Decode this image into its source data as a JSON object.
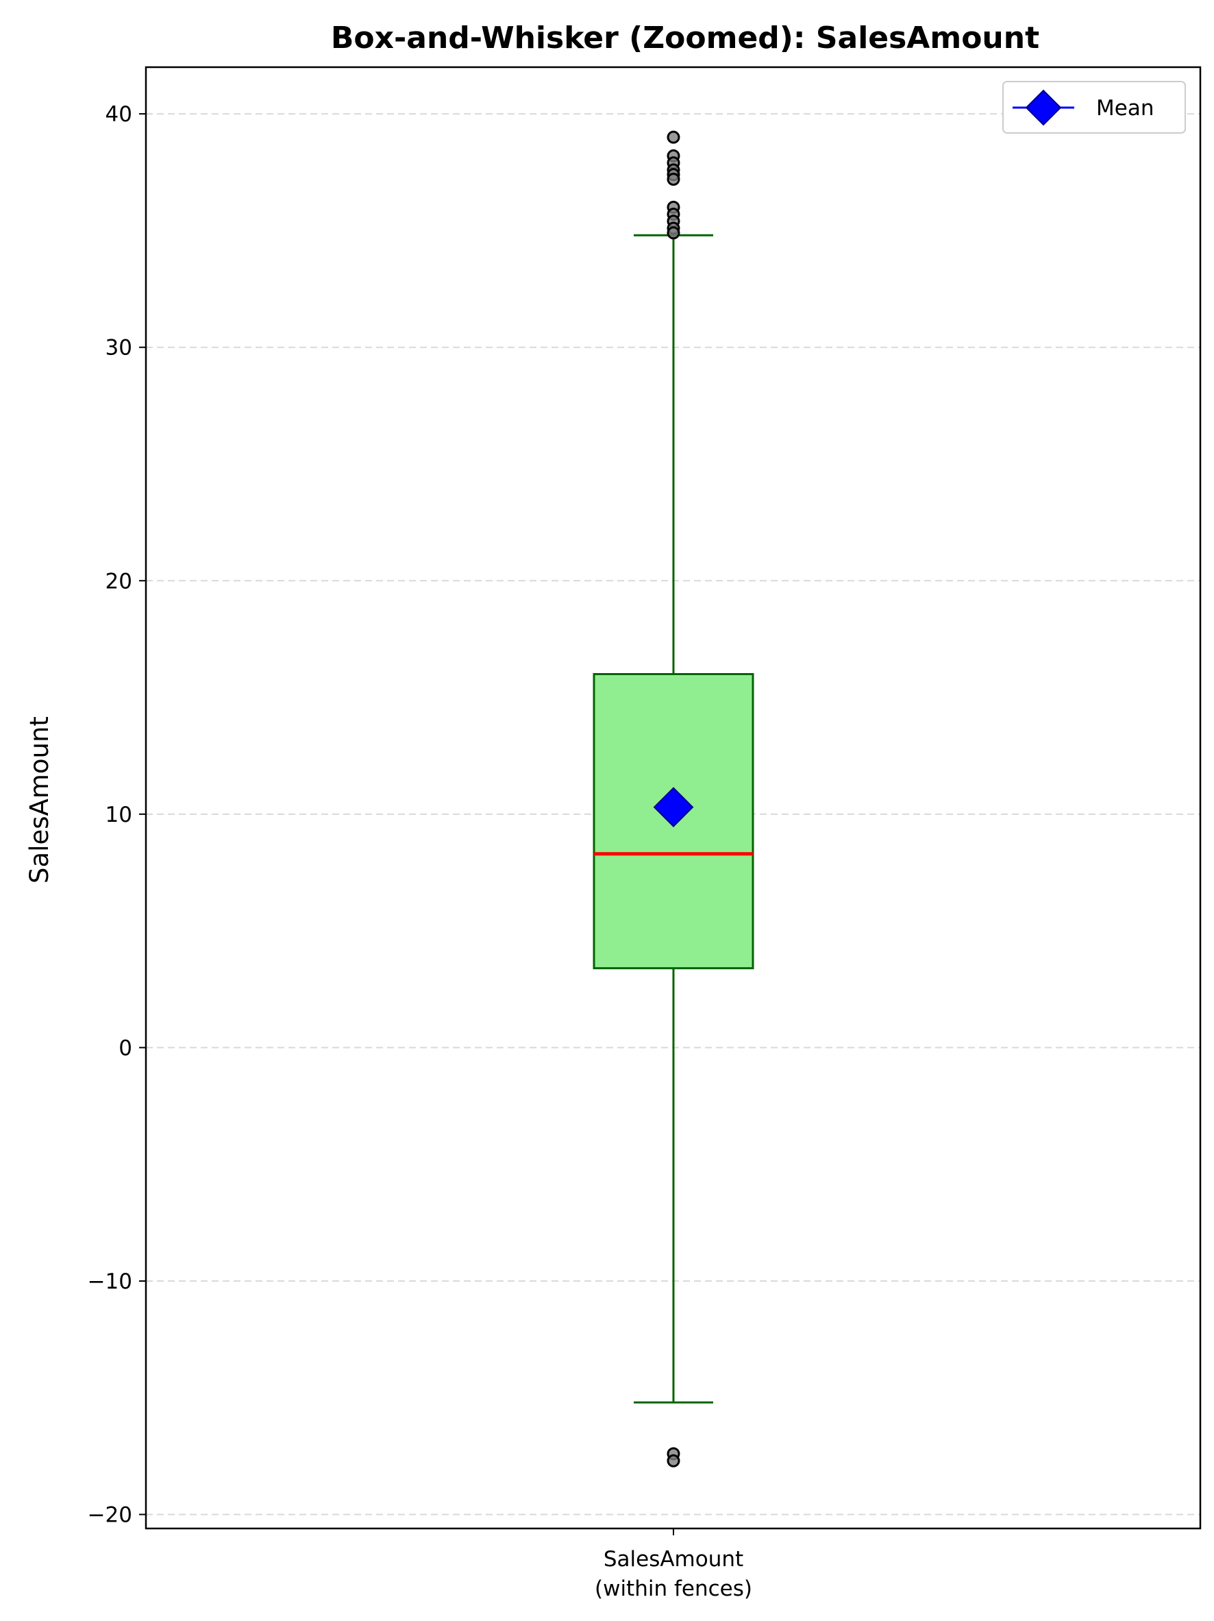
{
  "chart_data": {
    "type": "box",
    "title": "Box-and-Whisker (Zoomed): SalesAmount",
    "ylabel": "SalesAmount",
    "categories": [
      "SalesAmount",
      "(within fences)"
    ],
    "ylim": [
      -20.6,
      42.0
    ],
    "yticks": [
      -20,
      -10,
      0,
      10,
      20,
      30,
      40
    ],
    "ytick_labels": [
      "−20",
      "−10",
      "0",
      "10",
      "20",
      "30",
      "40"
    ],
    "grid": "y-dashed",
    "legend": {
      "position": "top-right",
      "entries": [
        "Mean"
      ]
    },
    "box": {
      "whisker_low": -15.2,
      "q1": 3.4,
      "median": 8.3,
      "mean": 10.3,
      "q3": 16.0,
      "whisker_high": 34.8
    },
    "outliers": [
      39.0,
      38.2,
      37.9,
      37.6,
      37.4,
      37.2,
      36.0,
      35.7,
      35.4,
      35.1,
      34.9,
      -17.4,
      -17.7
    ],
    "colors": {
      "box_fill": "#90ee90",
      "box_edge": "#006400",
      "whisker": "#006400",
      "median": "#ff0000",
      "mean_marker": "#0000ff",
      "mean_edge": "#00008b",
      "outlier_fill": "#808080",
      "outlier_edge": "#000000",
      "grid": "#d9d9d9"
    }
  }
}
